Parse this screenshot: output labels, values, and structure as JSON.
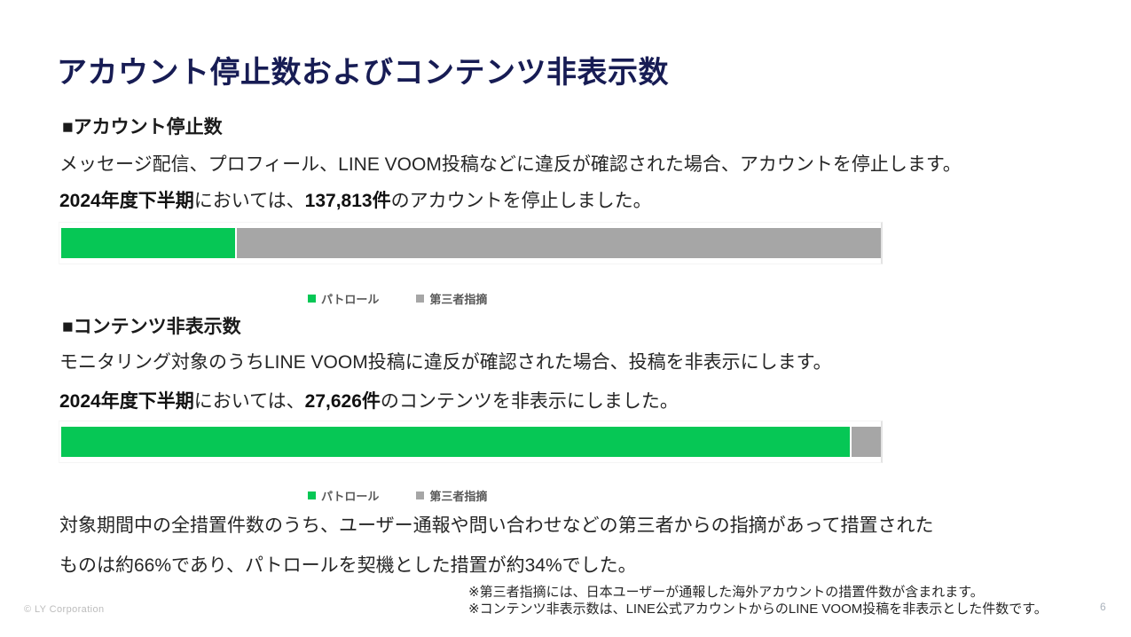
{
  "slide": {
    "title": "アカウント停止数およびコンテンツ非表示数",
    "page_number": "6",
    "copyright": "© LY Corporation"
  },
  "colors": {
    "title_navy": "#171C54",
    "patrol_green": "#06C755",
    "third_party_gray": "#A6A6A6",
    "legend_text": "#595959"
  },
  "section_account": {
    "heading": "■アカウント停止数",
    "description": "メッセージ配信、プロフィール、LINE VOOM投稿などに違反が確認された場合、アカウントを停止します。",
    "stat_period": "2024年度下半期",
    "stat_mid": "においては、",
    "stat_value": "137,813件",
    "stat_suffix": "のアカウントを停止しました。"
  },
  "section_content": {
    "heading": "■コンテンツ非表示数",
    "description": "モニタリング対象のうちLINE VOOM投稿に違反が確認された場合、投稿を非表示にします。",
    "stat_period": "2024年度下半期",
    "stat_mid": "においては、",
    "stat_value": "27,626件",
    "stat_suffix": "のコンテンツを非表示にしました。"
  },
  "legend": {
    "patrol": "パトロール",
    "third_party": "第三者指摘"
  },
  "summary": {
    "line1": "対象期間中の全措置件数のうち、ユーザー通報や問い合わせなどの第三者からの指摘があって措置された",
    "line2": "ものは約66%であり、パトロールを契機とした措置が約34%でした。"
  },
  "footnotes": [
    "※第三者指摘には、日本ユーザーが通報した海外アカウントの措置件数が含まれます。",
    "※コンテンツ非表示数は、LINE公式アカウントからのLINE VOOM投稿を非表示とした件数です。"
  ],
  "chart_data": [
    {
      "type": "bar",
      "orientation": "horizontal-stacked",
      "title": "アカウント停止数",
      "total_shown_in_text": "137,813件",
      "categories": [
        "2024年度下半期"
      ],
      "series": [
        {
          "name": "パトロール",
          "percent": 21.4,
          "color": "#06C755"
        },
        {
          "name": "第三者指摘",
          "percent": 78.6,
          "color": "#A6A6A6"
        }
      ],
      "xlim": [
        0,
        100
      ],
      "grid": false,
      "legend_position": "bottom-center"
    },
    {
      "type": "bar",
      "orientation": "horizontal-stacked",
      "title": "コンテンツ非表示数",
      "total_shown_in_text": "27,626件",
      "categories": [
        "2024年度下半期"
      ],
      "series": [
        {
          "name": "パトロール",
          "percent": 96.4,
          "color": "#06C755"
        },
        {
          "name": "第三者指摘",
          "percent": 3.6,
          "color": "#A6A6A6"
        }
      ],
      "xlim": [
        0,
        100
      ],
      "grid": false,
      "legend_position": "bottom-center"
    }
  ]
}
